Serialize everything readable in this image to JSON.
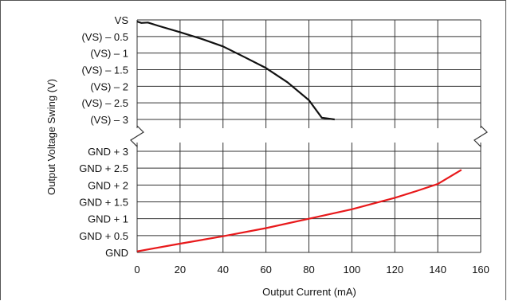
{
  "chart_data": {
    "type": "line",
    "title": "",
    "xlabel": "Output Current (mA)",
    "ylabel": "Output Voltage Swing (V)",
    "x_ticks": [
      "0",
      "20",
      "40",
      "60",
      "80",
      "100",
      "120",
      "140",
      "160"
    ],
    "xlim": [
      0,
      160
    ],
    "grid": true,
    "panels": [
      {
        "name": "upper",
        "y_ticks": [
          "VS",
          "(VS) – 0.5",
          "(VS) – 1",
          "(VS) – 1.5",
          "(VS) – 2",
          "(VS) – 2.5",
          "(VS) – 3"
        ],
        "ylim_below_vs": [
          0,
          3
        ],
        "series": [
          {
            "color": "#111111",
            "x": [
              0,
              2,
              5,
              10,
              20,
              30,
              40,
              50,
              60,
              70,
              80,
              86,
              92
            ],
            "y": [
              -0.05,
              -0.09,
              -0.08,
              -0.18,
              -0.37,
              -0.57,
              -0.8,
              -1.12,
              -1.45,
              -1.88,
              -2.42,
              -2.95,
              -3.0
            ]
          }
        ]
      },
      {
        "name": "lower",
        "y_ticks": [
          "GND + 3",
          "GND + 2.5",
          "GND + 2",
          "GND + 1.5",
          "GND + 1",
          "GND + 0.5",
          "GND"
        ],
        "ylim_above_gnd": [
          0,
          3
        ],
        "series": [
          {
            "color": "#e8191b",
            "x": [
              0,
              20,
              40,
              60,
              80,
              100,
              120,
              130,
              140,
              151
            ],
            "y": [
              0.03,
              0.26,
              0.48,
              0.72,
              1.0,
              1.28,
              1.62,
              1.82,
              2.03,
              2.45
            ]
          }
        ]
      }
    ]
  }
}
